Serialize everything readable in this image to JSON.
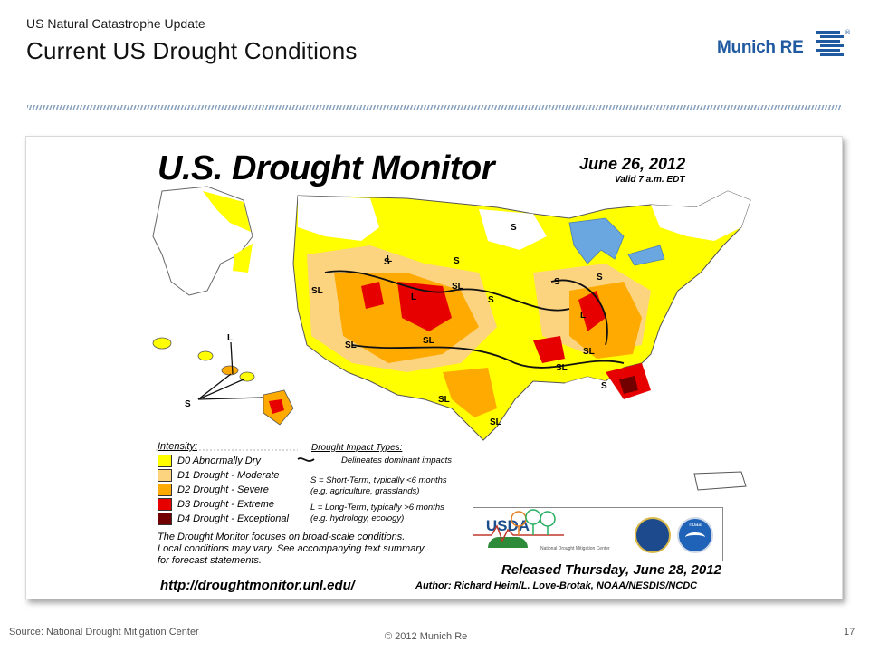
{
  "header": {
    "subtitle": "US Natural Catastrophe Update",
    "title": "Current US Drought Conditions",
    "logo_text": "Munich RE"
  },
  "map": {
    "title": "U.S. Drought Monitor",
    "date": "June 26, 2012",
    "valid": "Valid 7 a.m. EDT",
    "legend_title": "Intensity:",
    "legend": [
      {
        "label": "D0 Abnormally Dry",
        "color": "#ffff00"
      },
      {
        "label": "D1 Drought - Moderate",
        "color": "#fcd37f"
      },
      {
        "label": "D2 Drought - Severe",
        "color": "#ffaa00"
      },
      {
        "label": "D3 Drought - Extreme",
        "color": "#e60000"
      },
      {
        "label": "D4 Drought - Exceptional",
        "color": "#730000"
      }
    ],
    "impact_title": "Drought Impact Types:",
    "impact_line": "Delineates dominant impacts",
    "impact_short": "S = Short-Term, typically <6 months",
    "impact_short_eg": "(e.g. agriculture, grasslands)",
    "impact_long": "L = Long-Term, typically >6 months",
    "impact_long_eg": "(e.g. hydrology, ecology)",
    "note_1": "The Drought Monitor focuses on broad-scale conditions.",
    "note_2": "Local conditions may vary. See accompanying text summary",
    "note_3": "for forecast statements.",
    "url": "http://droughtmonitor.unl.edu/",
    "released": "Released Thursday, June 28, 2012",
    "author": "Author: Richard Heim/L. Love-Brotak, NOAA/NESDIS/NCDC",
    "usda": "USDA",
    "ndmc": "National Drought Mitigation Center",
    "noaa": "noaa",
    "region_labels": [
      "SL",
      "SL",
      "SL",
      "SL",
      "SL",
      "SL",
      "SL",
      "SL",
      "S",
      "S",
      "S",
      "S",
      "S",
      "S",
      "S",
      "L",
      "L",
      "L"
    ]
  },
  "footer": {
    "source": "Source: National Drought Mitigation Center",
    "copyright": "© 2012 Munich Re",
    "page": "17"
  }
}
